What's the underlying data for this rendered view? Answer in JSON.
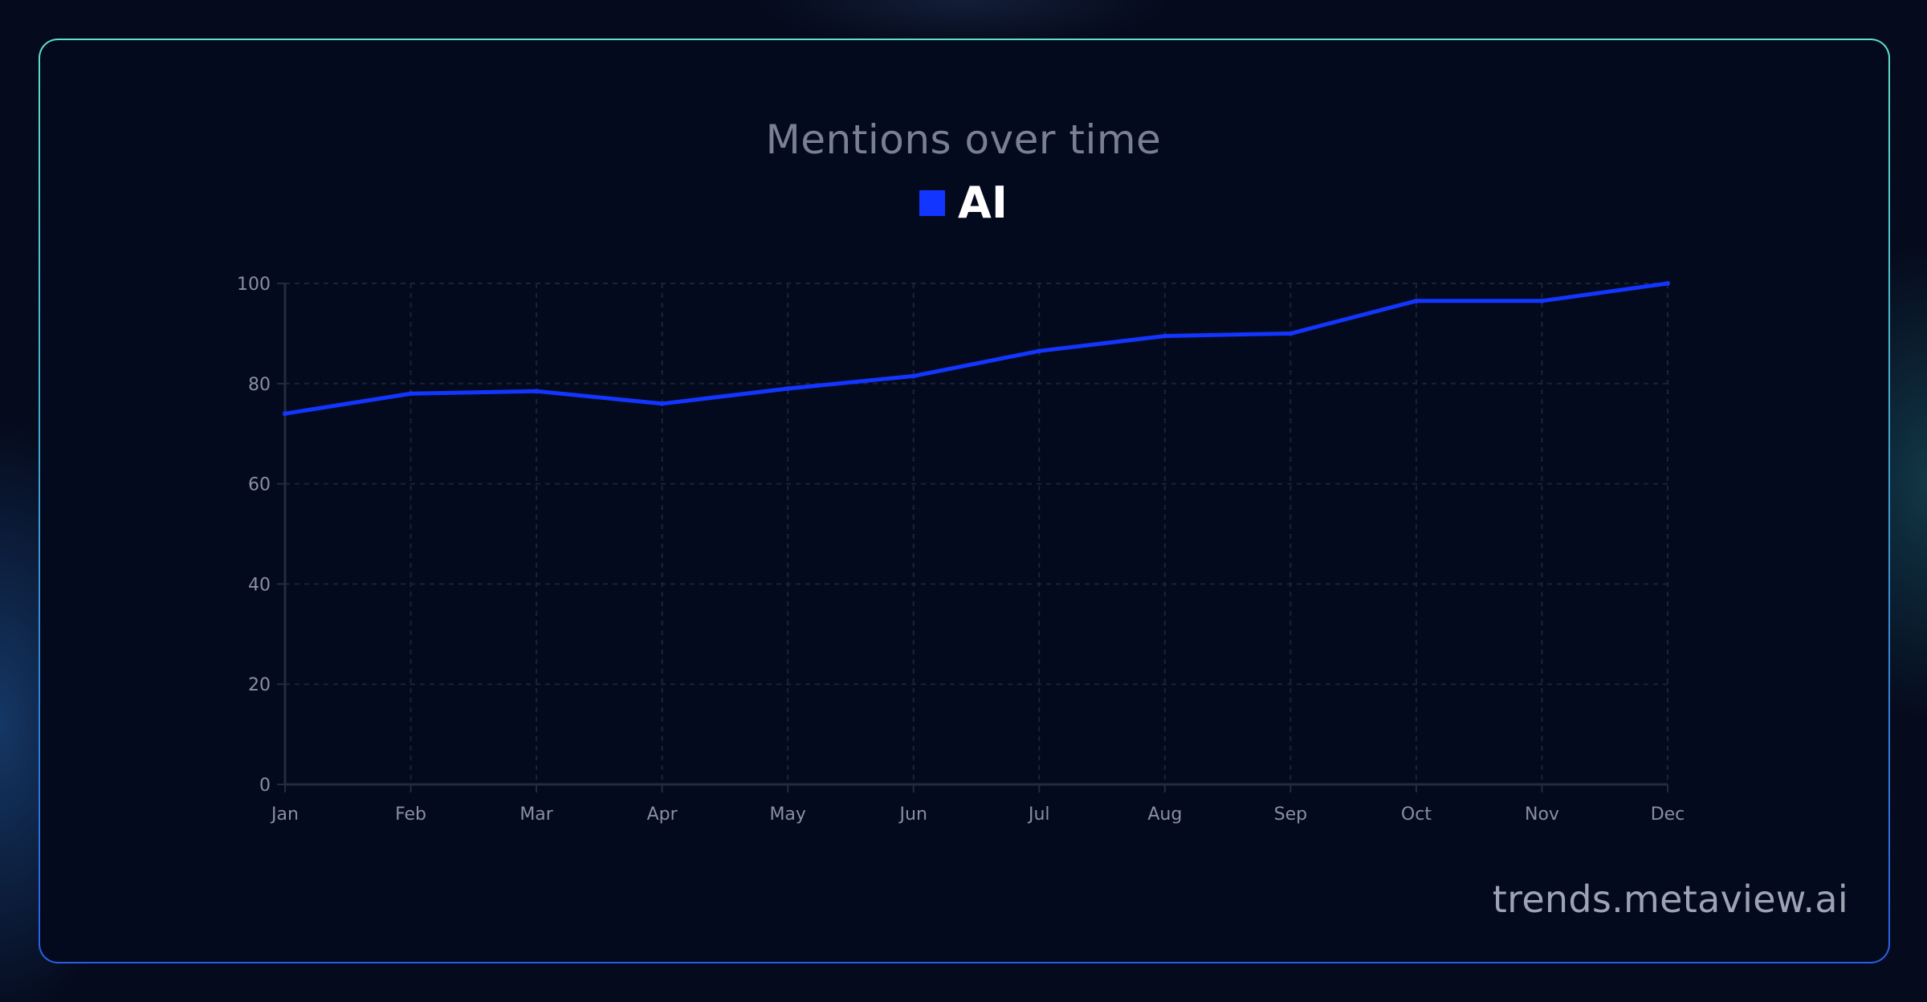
{
  "watermark": "trends.metaview.ai",
  "colors": {
    "background": "#050a1c",
    "card_background": "#040a1d",
    "series_line": "#1236ff",
    "grid": "#1b2338",
    "axis": "#242b40",
    "tick_text": "#8a8f9f",
    "title_text": "#7a7f91"
  },
  "chart_data": {
    "type": "line",
    "title": "Mentions over time",
    "xlabel": "",
    "ylabel": "",
    "categories": [
      "Jan",
      "Feb",
      "Mar",
      "Apr",
      "May",
      "Jun",
      "Jul",
      "Aug",
      "Sep",
      "Oct",
      "Nov",
      "Dec"
    ],
    "series": [
      {
        "name": "AI",
        "color": "#1236ff",
        "values": [
          74,
          78,
          78.5,
          76,
          79,
          81.5,
          86.5,
          89.5,
          90,
          96.5,
          96.5,
          100
        ]
      }
    ],
    "ylim": [
      0,
      100
    ],
    "yticks": [
      0,
      20,
      40,
      60,
      80,
      100
    ],
    "grid": true,
    "grid_style": "dashed",
    "legend_position": "top-center"
  }
}
